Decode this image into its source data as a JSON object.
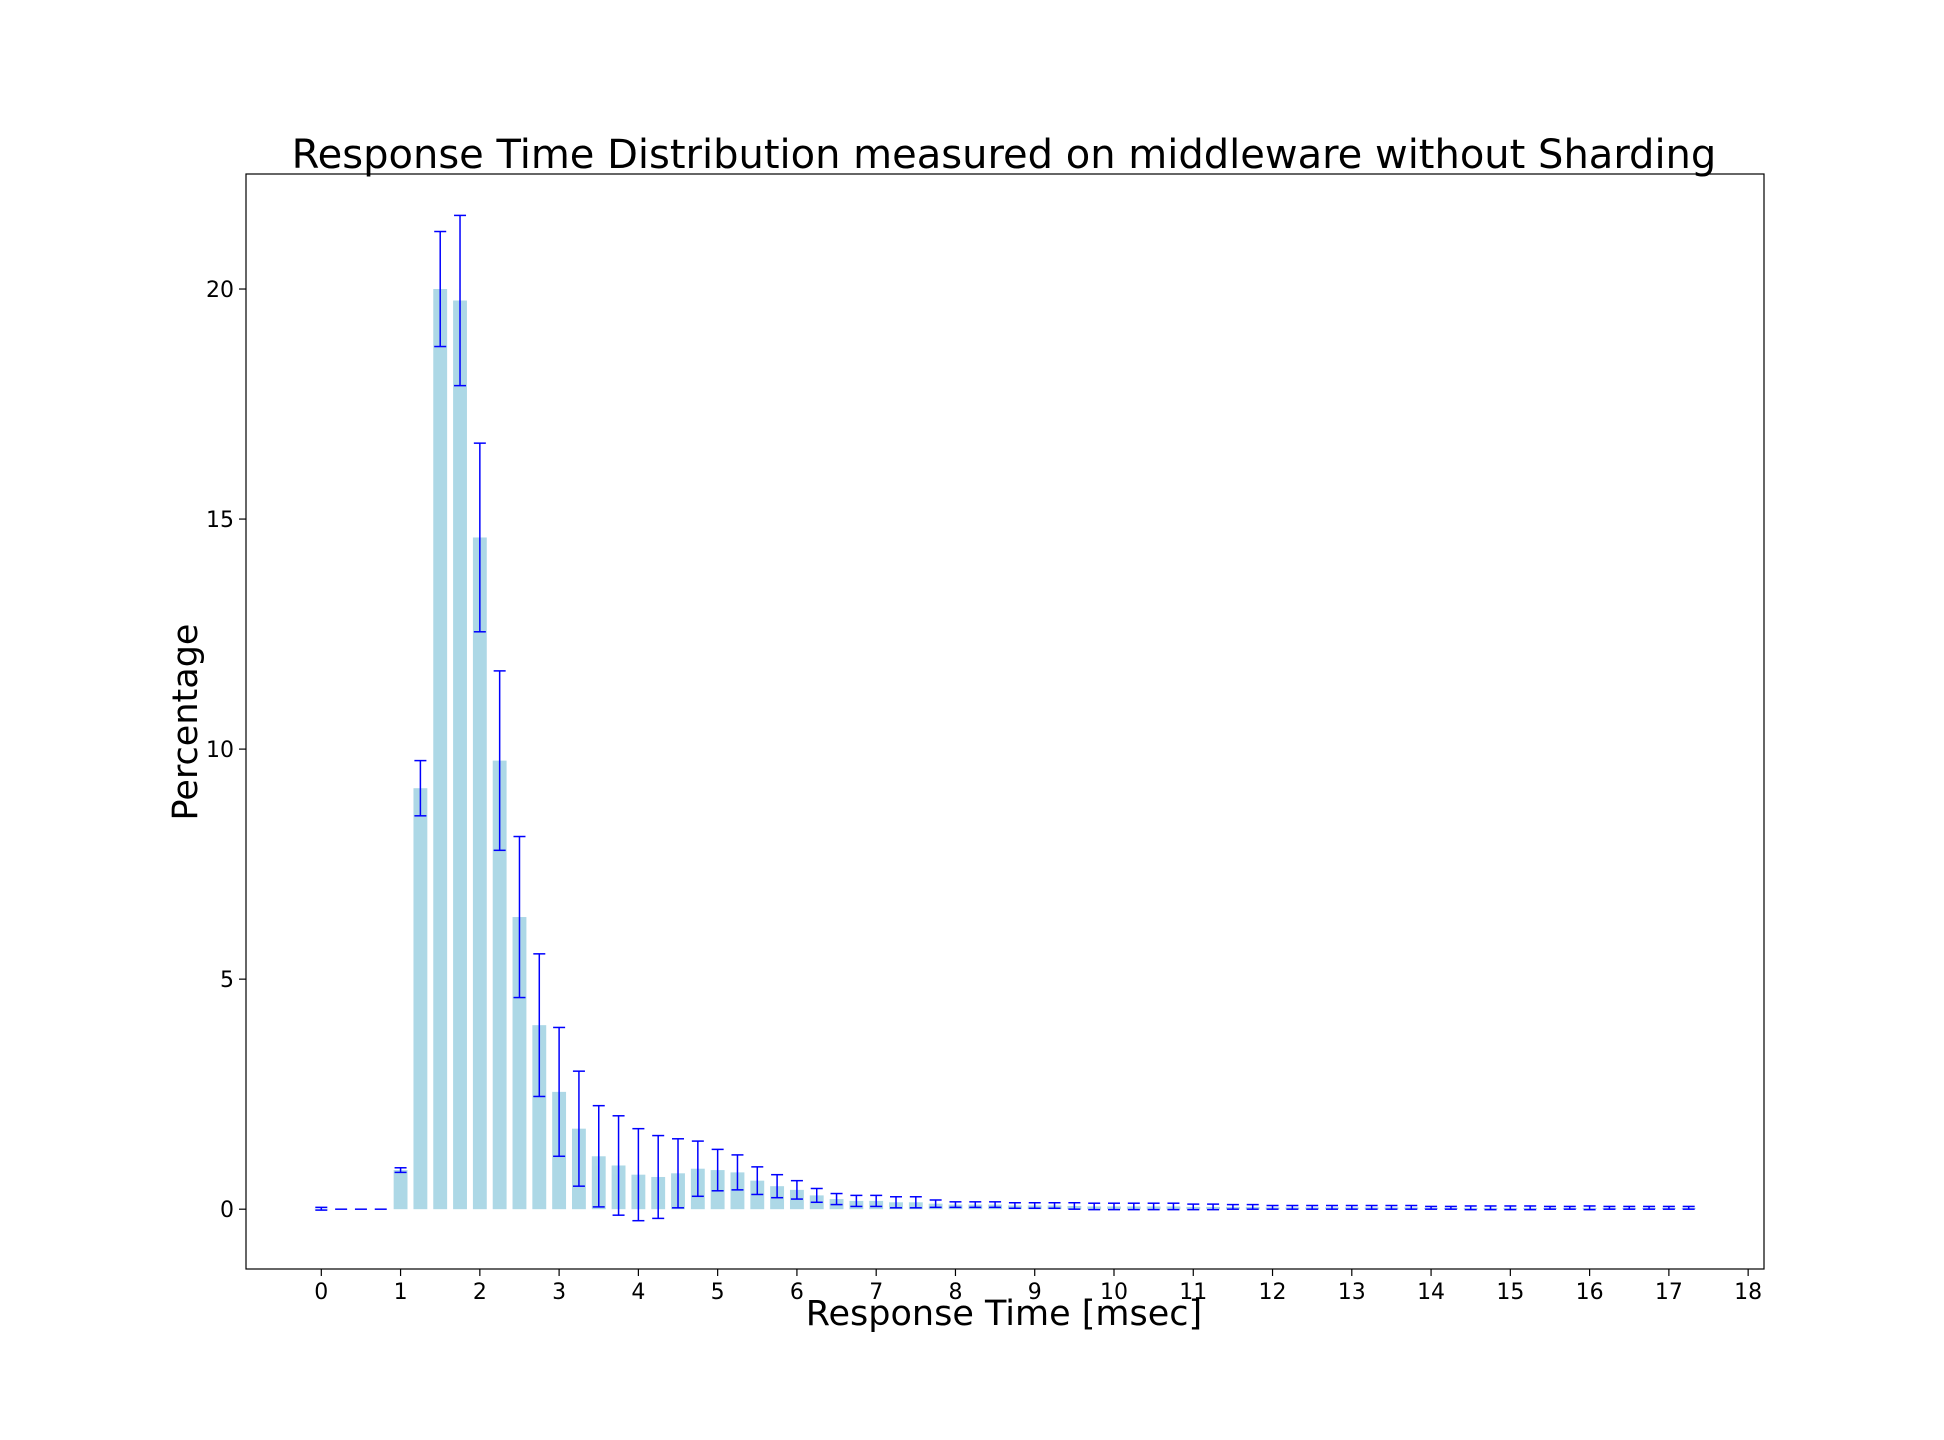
{
  "chart_data": {
    "type": "bar",
    "title": "Response Time Distribution measured on middleware without Sharding",
    "xlabel": "Response Time [msec]",
    "ylabel": "Percentage",
    "xlim": [
      -0.95,
      18.2
    ],
    "ylim": [
      -1.3,
      22.5
    ],
    "xticks": [
      0,
      1,
      2,
      3,
      4,
      5,
      6,
      7,
      8,
      9,
      10,
      11,
      12,
      13,
      14,
      15,
      16,
      17,
      18
    ],
    "yticks": [
      0,
      5,
      10,
      15,
      20
    ],
    "bar_width": 0.175,
    "grid": false,
    "legend": "none",
    "bar_color": "#add8e6",
    "error_color": "#0000ff",
    "x": [
      0,
      0.25,
      0.5,
      0.75,
      1,
      1.25,
      1.5,
      1.75,
      2,
      2.25,
      2.5,
      2.75,
      3,
      3.25,
      3.5,
      3.75,
      4,
      4.25,
      4.5,
      4.75,
      5,
      5.25,
      5.5,
      5.75,
      6,
      6.25,
      6.5,
      6.75,
      7,
      7.25,
      7.5,
      7.75,
      8,
      8.25,
      8.5,
      8.75,
      9,
      9.25,
      9.5,
      9.75,
      10,
      10.25,
      10.5,
      10.75,
      11,
      11.25,
      11.5,
      11.75,
      12,
      12.25,
      12.5,
      12.75,
      13,
      13.25,
      13.5,
      13.75,
      14,
      14.25,
      14.5,
      14.75,
      15,
      15.25,
      15.5,
      15.75,
      16,
      16.25,
      16.5,
      16.75,
      17,
      17.25
    ],
    "values": [
      0.01,
      0,
      0,
      0,
      0.85,
      9.15,
      20.0,
      19.75,
      14.6,
      9.75,
      6.35,
      4.0,
      2.55,
      1.75,
      1.15,
      0.95,
      0.75,
      0.7,
      0.78,
      0.88,
      0.85,
      0.8,
      0.62,
      0.5,
      0.42,
      0.3,
      0.22,
      0.18,
      0.18,
      0.15,
      0.15,
      0.12,
      0.1,
      0.1,
      0.1,
      0.08,
      0.08,
      0.08,
      0.07,
      0.06,
      0.06,
      0.06,
      0.06,
      0.06,
      0.05,
      0.05,
      0.05,
      0.05,
      0.04,
      0.04,
      0.04,
      0.04,
      0.04,
      0.04,
      0.04,
      0.04,
      0.03,
      0.03,
      0.03,
      0.03,
      0.03,
      0.03,
      0.03,
      0.03,
      0.03,
      0.03,
      0.03,
      0.03,
      0.03,
      0.03
    ],
    "errors": [
      0.03,
      0,
      0,
      0,
      0.05,
      0.6,
      1.25,
      1.85,
      2.05,
      1.95,
      1.75,
      1.55,
      1.4,
      1.25,
      1.1,
      1.08,
      1.0,
      0.9,
      0.75,
      0.6,
      0.45,
      0.38,
      0.3,
      0.25,
      0.2,
      0.15,
      0.12,
      0.12,
      0.12,
      0.12,
      0.12,
      0.08,
      0.06,
      0.06,
      0.06,
      0.06,
      0.06,
      0.06,
      0.07,
      0.07,
      0.07,
      0.07,
      0.07,
      0.07,
      0.06,
      0.06,
      0.05,
      0.05,
      0.04,
      0.04,
      0.04,
      0.04,
      0.04,
      0.04,
      0.04,
      0.04,
      0.03,
      0.03,
      0.04,
      0.04,
      0.04,
      0.04,
      0.03,
      0.03,
      0.04,
      0.03,
      0.03,
      0.03,
      0.03,
      0.03
    ]
  }
}
